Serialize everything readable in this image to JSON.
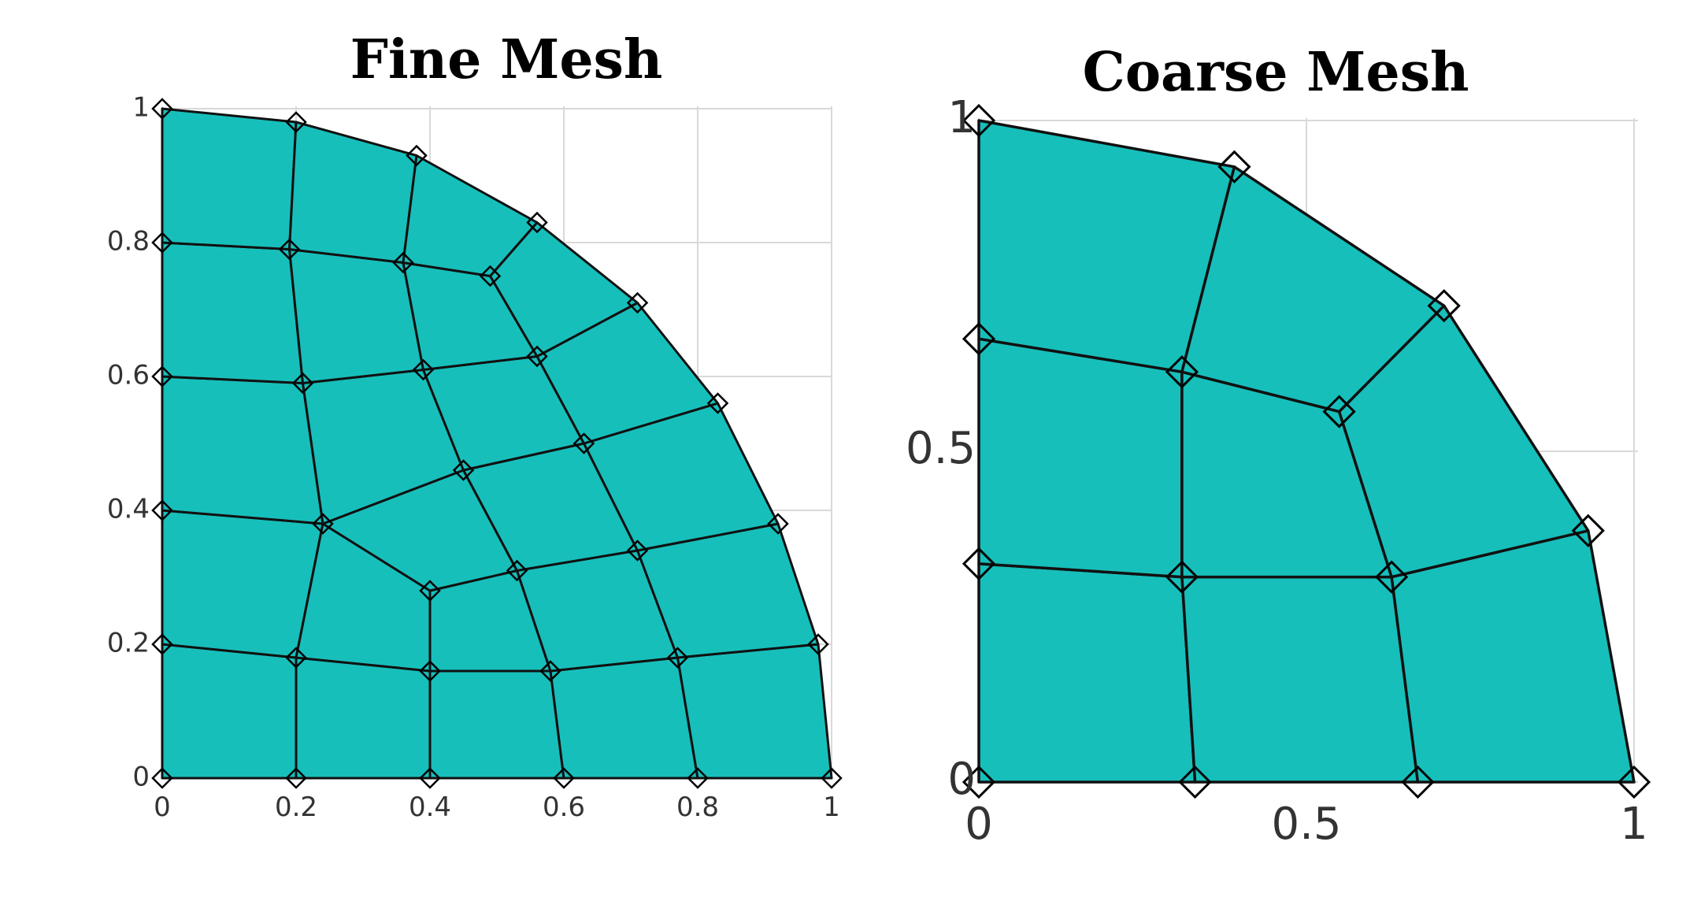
{
  "panels": [
    {
      "title": "Fine Mesh",
      "fill_color": "#17bfbb",
      "x_ticks": [
        0,
        0.2,
        0.4,
        0.6,
        0.8,
        1
      ],
      "y_ticks": [
        0,
        0.2,
        0.4,
        0.6,
        0.8,
        1
      ],
      "x_tick_labels": [
        "0",
        "0.2",
        "0.4",
        "0.6",
        "0.8",
        "1"
      ],
      "y_tick_labels": [
        "0",
        "0.2",
        "0.4",
        "0.6",
        "0.8",
        "1"
      ],
      "nodes": [
        [
          0,
          0
        ],
        [
          0.2,
          0
        ],
        [
          0.4,
          0
        ],
        [
          0.6,
          0
        ],
        [
          0.8,
          0
        ],
        [
          1,
          0
        ],
        [
          0,
          0.2
        ],
        [
          0.2,
          0.18
        ],
        [
          0.4,
          0.16
        ],
        [
          0.58,
          0.16
        ],
        [
          0.77,
          0.18
        ],
        [
          0.98,
          0.2
        ],
        [
          0,
          0.4
        ],
        [
          0.24,
          0.38
        ],
        [
          0.4,
          0.28
        ],
        [
          0.53,
          0.31
        ],
        [
          0.71,
          0.34
        ],
        [
          0.92,
          0.38
        ],
        [
          0,
          0.6
        ],
        [
          0.21,
          0.59
        ],
        [
          0.39,
          0.61
        ],
        [
          0.45,
          0.46
        ],
        [
          0.63,
          0.5
        ],
        [
          0.83,
          0.56
        ],
        [
          0,
          0.8
        ],
        [
          0.19,
          0.79
        ],
        [
          0.36,
          0.77
        ],
        [
          0.49,
          0.75
        ],
        [
          0.56,
          0.63
        ],
        [
          0.71,
          0.71
        ],
        [
          0,
          1
        ],
        [
          0.2,
          0.98
        ],
        [
          0.38,
          0.93
        ],
        [
          0.56,
          0.83
        ]
      ],
      "elements": [
        [
          0,
          1,
          7,
          6
        ],
        [
          1,
          2,
          8,
          7
        ],
        [
          2,
          3,
          9,
          8
        ],
        [
          3,
          4,
          10,
          9
        ],
        [
          4,
          5,
          11,
          10
        ],
        [
          6,
          7,
          13,
          12
        ],
        [
          7,
          8,
          14,
          13
        ],
        [
          8,
          9,
          15,
          14
        ],
        [
          9,
          10,
          16,
          15
        ],
        [
          10,
          11,
          17,
          16
        ],
        [
          12,
          13,
          19,
          18
        ],
        [
          13,
          14,
          15,
          21
        ],
        [
          13,
          21,
          20,
          19
        ],
        [
          15,
          16,
          22,
          21
        ],
        [
          16,
          17,
          23,
          22
        ],
        [
          18,
          19,
          25,
          24
        ],
        [
          19,
          20,
          26,
          25
        ],
        [
          20,
          21,
          22,
          28
        ],
        [
          20,
          28,
          27,
          26
        ],
        [
          22,
          23,
          29,
          28
        ],
        [
          28,
          29,
          33,
          27
        ],
        [
          24,
          25,
          31,
          30
        ],
        [
          25,
          26,
          32,
          31
        ],
        [
          26,
          27,
          33,
          32
        ]
      ],
      "boundary": [
        0,
        5,
        11,
        17,
        23,
        29,
        33,
        32,
        31,
        30
      ]
    },
    {
      "title": "Coarse Mesh",
      "fill_color": "#17bfbb",
      "x_ticks": [
        0,
        0.5,
        1
      ],
      "y_ticks": [
        0,
        0.5,
        1
      ],
      "x_tick_labels": [
        "0",
        "0.5",
        "1"
      ],
      "y_tick_labels": [
        "0",
        "0.5",
        "1"
      ],
      "nodes": [
        [
          0,
          0
        ],
        [
          0.33,
          0
        ],
        [
          0.67,
          0
        ],
        [
          1,
          0
        ],
        [
          0,
          0.33
        ],
        [
          0.31,
          0.31
        ],
        [
          0.63,
          0.31
        ],
        [
          0.93,
          0.38
        ],
        [
          0,
          0.67
        ],
        [
          0.31,
          0.62
        ],
        [
          0.55,
          0.56
        ],
        [
          0.71,
          0.72
        ],
        [
          0,
          1
        ],
        [
          0.39,
          0.93
        ]
      ],
      "elements": [
        [
          0,
          1,
          5,
          4
        ],
        [
          1,
          2,
          6,
          5
        ],
        [
          2,
          3,
          7,
          6
        ],
        [
          4,
          5,
          9,
          8
        ],
        [
          5,
          6,
          10,
          9
        ],
        [
          6,
          7,
          11,
          10
        ],
        [
          8,
          9,
          13,
          12
        ],
        [
          9,
          10,
          11,
          13
        ]
      ],
      "boundary": [
        0,
        3,
        7,
        11,
        13,
        12
      ]
    }
  ]
}
